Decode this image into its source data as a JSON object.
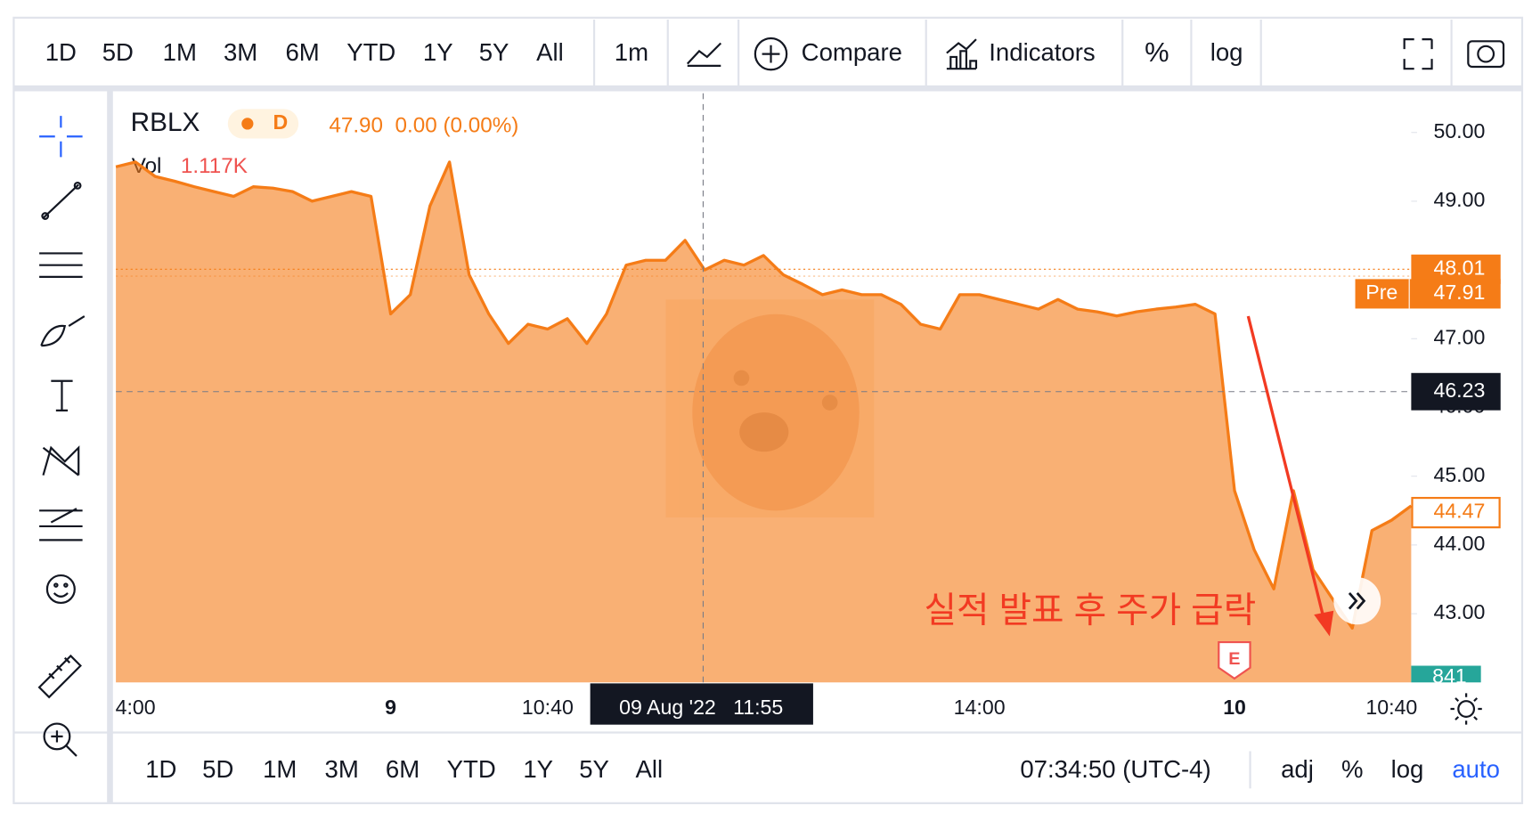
{
  "toolbar": {
    "ranges": [
      "1D",
      "5D",
      "1M",
      "3M",
      "6M",
      "YTD",
      "1Y",
      "5Y",
      "All"
    ],
    "interval": "1m",
    "compare": "Compare",
    "indicators": "Indicators",
    "percent": "%",
    "log": "log"
  },
  "legend": {
    "symbol": "RBLX",
    "timeframe": "D",
    "quote": "47.90  0.00 (0.00%)",
    "volume_label": "Vol",
    "volume": "1.117K"
  },
  "chart_data": {
    "type": "line",
    "color": "#f57c17",
    "categories": [
      null,
      "4:00",
      null,
      null,
      null,
      null,
      null,
      null,
      null,
      null,
      null,
      null,
      null,
      null,
      "9",
      null,
      null,
      null,
      null,
      null,
      null,
      null,
      "10:40",
      null,
      null,
      null,
      null,
      null,
      null,
      null,
      null,
      null,
      null,
      null,
      null,
      null,
      null,
      null,
      null,
      null,
      null,
      null,
      null,
      null,
      "14:00",
      null,
      null,
      null,
      null,
      null,
      null,
      null,
      null,
      null,
      null,
      null,
      null,
      "10",
      null,
      null,
      null,
      null,
      null,
      null,
      null,
      "10:40",
      null
    ],
    "values": [
      49.5,
      49.57,
      49.36,
      49.29,
      49.21,
      49.14,
      49.07,
      49.21,
      49.19,
      49.14,
      49.0,
      49.07,
      49.14,
      49.07,
      47.36,
      47.64,
      48.93,
      49.57,
      47.93,
      47.36,
      46.93,
      47.21,
      47.14,
      47.29,
      46.93,
      47.36,
      48.07,
      48.14,
      48.14,
      48.43,
      48.0,
      48.14,
      48.07,
      48.21,
      47.93,
      47.79,
      47.64,
      47.71,
      47.64,
      47.64,
      47.5,
      47.21,
      47.14,
      47.64,
      47.64,
      47.57,
      47.5,
      47.43,
      47.57,
      47.43,
      47.39,
      47.33,
      47.39,
      47.43,
      47.46,
      47.5,
      47.36,
      44.79,
      43.93,
      43.36,
      44.79,
      43.64,
      43.21,
      42.79,
      44.21,
      44.36,
      44.57
    ],
    "ylim": [
      42,
      50.57
    ],
    "yticks": [
      {
        "value": 43,
        "label": "43.00"
      },
      {
        "value": 44,
        "label": "44.00"
      },
      {
        "value": 45,
        "label": "45.00"
      },
      {
        "value": 46,
        "label": "46.00"
      },
      {
        "value": 47,
        "label": "47.00"
      },
      {
        "value": 48,
        "label": "48.00"
      },
      {
        "value": 49,
        "label": "49.00"
      },
      {
        "value": 50,
        "label": "50.00"
      }
    ],
    "last_price": 48.01,
    "pre_label": "Pre",
    "pre_price": 47.91,
    "crosshair_price": 46.23,
    "current_price": 44.47,
    "last_volume": 841,
    "crosshair_time": "09 Aug '22   11:55",
    "annotation": "실적 발표 후 주가 급락",
    "earnings_marker": "E"
  },
  "footer": {
    "ranges": [
      "1D",
      "5D",
      "1M",
      "3M",
      "6M",
      "YTD",
      "1Y",
      "5Y",
      "All"
    ],
    "clock": "07:34:50 (UTC-4)",
    "adj": "adj",
    "percent": "%",
    "log": "log",
    "auto": "auto"
  }
}
